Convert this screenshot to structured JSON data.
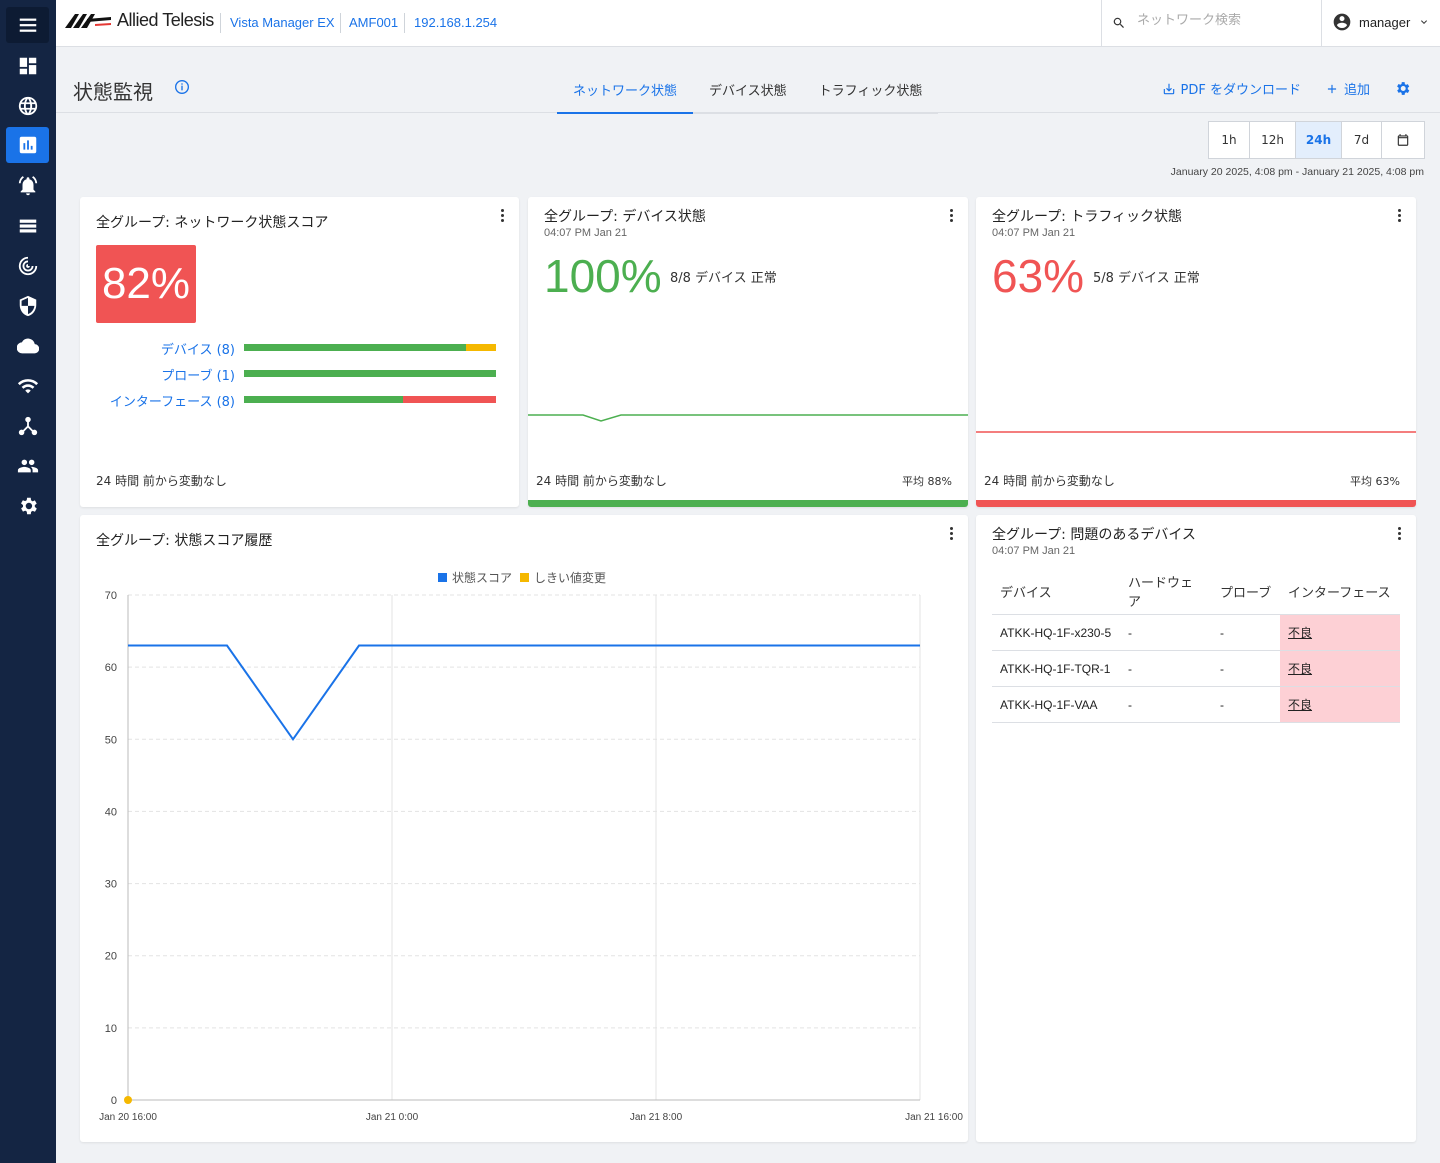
{
  "app": {
    "brand": "Allied Telesis",
    "product": "Vista Manager EX",
    "area": "AMF001",
    "ip": "192.168.1.254",
    "search_placeholder": "ネットワーク検索",
    "user": "manager"
  },
  "sidebar": {
    "items": [
      {
        "icon": "menu-icon"
      },
      {
        "icon": "dashboard-icon"
      },
      {
        "icon": "globe-icon"
      },
      {
        "icon": "chart-icon",
        "active": true
      },
      {
        "icon": "alarm-icon"
      },
      {
        "icon": "list-icon"
      },
      {
        "icon": "radar-icon"
      },
      {
        "icon": "shield-icon"
      },
      {
        "icon": "cloud-icon"
      },
      {
        "icon": "wifi-icon"
      },
      {
        "icon": "network-icon"
      },
      {
        "icon": "users-icon"
      },
      {
        "icon": "settings-icon"
      }
    ]
  },
  "header": {
    "title": "状態監視",
    "tabs": [
      {
        "label": "ネットワーク状態",
        "active": true
      },
      {
        "label": "デバイス状態",
        "active": false
      },
      {
        "label": "トラフィック状態",
        "active": false
      }
    ],
    "pdf_label": "PDF をダウンロード",
    "add_label": "追加"
  },
  "range": {
    "options": [
      "1h",
      "12h",
      "24h",
      "7d"
    ],
    "selected": "24h",
    "text": "January 20 2025, 4:08 pm - January 21 2025, 4:08 pm"
  },
  "colors": {
    "green": "#4caf50",
    "yellow": "#f5b800",
    "red": "#f05454",
    "blue": "#1a73e8"
  },
  "network_score": {
    "title": "全グループ: ネットワーク状態スコア",
    "score": "82%",
    "bars": [
      {
        "label": "デバイス (8)",
        "segments": [
          {
            "color": "green",
            "frac": 0.88
          },
          {
            "color": "yellow",
            "frac": 0.12
          }
        ]
      },
      {
        "label": "プローブ (1)",
        "segments": [
          {
            "color": "green",
            "frac": 1.0
          }
        ]
      },
      {
        "label": "インターフェース (8)",
        "segments": [
          {
            "color": "green",
            "frac": 0.63
          },
          {
            "color": "red",
            "frac": 0.37
          }
        ]
      }
    ],
    "footer": "24 時間 前から変動なし"
  },
  "device_status": {
    "title": "全グループ: デバイス状態",
    "time": "04:07 PM Jan 21",
    "pct": "100%",
    "note": "8/8 デバイス 正常",
    "footer": "24 時間 前から変動なし",
    "avg": "平均 88%"
  },
  "traffic_status": {
    "title": "全グループ: トラフィック状態",
    "time": "04:07 PM Jan 21",
    "pct": "63%",
    "note": "5/8 デバイス 正常",
    "footer": "24 時間 前から変動なし",
    "avg": "平均 63%"
  },
  "history": {
    "title": "全グループ: 状態スコア履歴"
  },
  "chart_data": {
    "type": "line",
    "series": [
      {
        "name": "状態スコア",
        "color": "#1a73e8",
        "x": [
          0,
          3.0,
          5.0,
          7.0,
          24
        ],
        "y": [
          63,
          63,
          50,
          63,
          63
        ]
      },
      {
        "name": "しきい値変更",
        "color": "#f5b800",
        "x": [
          0
        ],
        "y": [
          0
        ]
      }
    ],
    "ylim": [
      0,
      70
    ],
    "yticks": [
      0,
      10,
      20,
      30,
      40,
      50,
      60,
      70
    ],
    "xlim": [
      0,
      24
    ],
    "xticks": [
      {
        "x": 0,
        "label": "Jan 20 16:00"
      },
      {
        "x": 8,
        "label": "Jan 21 0:00"
      },
      {
        "x": 16,
        "label": "Jan 21 8:00"
      },
      {
        "x": 24,
        "label": "Jan 21 16:00"
      }
    ],
    "grid": true,
    "legend": "top-center"
  },
  "problem_devices": {
    "title": "全グループ: 問題のあるデバイス",
    "time": "04:07 PM Jan 21",
    "columns": [
      "デバイス",
      "ハードウェア",
      "プローブ",
      "インターフェース"
    ],
    "rows": [
      [
        "ATKK-HQ-1F-x230-5",
        "-",
        "-",
        "不良"
      ],
      [
        "ATKK-HQ-1F-TQR-1",
        "-",
        "-",
        "不良"
      ],
      [
        "ATKK-HQ-1F-VAA",
        "-",
        "-",
        "不良"
      ]
    ]
  }
}
